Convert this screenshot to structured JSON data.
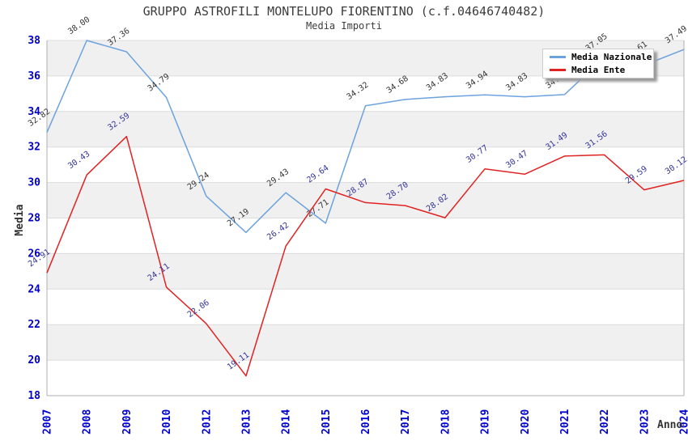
{
  "title": "GRUPPO ASTROFILI MONTELUPO FIORENTINO (c.f.04646740482)",
  "subtitle": "Media Importi",
  "chart_data": {
    "type": "line",
    "x": [
      "2007",
      "2008",
      "2009",
      "2010",
      "2012",
      "2013",
      "2014",
      "2015",
      "2016",
      "2017",
      "2018",
      "2019",
      "2020",
      "2021",
      "2022",
      "2023",
      "2024"
    ],
    "series": [
      {
        "name": "Media Nazionale",
        "color": "#6CA2DD",
        "label_color": "#333333",
        "values": [
          32.82,
          38.0,
          37.36,
          34.79,
          29.24,
          27.19,
          29.43,
          27.71,
          34.32,
          34.68,
          34.83,
          34.94,
          34.83,
          34.95,
          37.05,
          36.61,
          37.49
        ]
      },
      {
        "name": "Media Ente",
        "color": "#E02222",
        "label_color": "#333399",
        "values": [
          24.91,
          30.43,
          32.59,
          24.11,
          22.06,
          19.11,
          26.42,
          29.64,
          28.87,
          28.7,
          28.02,
          30.77,
          30.47,
          31.49,
          31.56,
          29.59,
          30.12
        ]
      }
    ],
    "xlabel": "Anno",
    "ylabel": "Media",
    "ylim": [
      18,
      38
    ],
    "ytick_step": 2,
    "grid": "horizontal",
    "banded_background": true,
    "legend_position": "top-right",
    "colors": {
      "axis_text": "#0000CD",
      "band_fill": "#F0F0F0",
      "grid_line": "#DCDCDC",
      "plot_border": "#AFAFAF",
      "axis_title_text": "#333333"
    }
  }
}
